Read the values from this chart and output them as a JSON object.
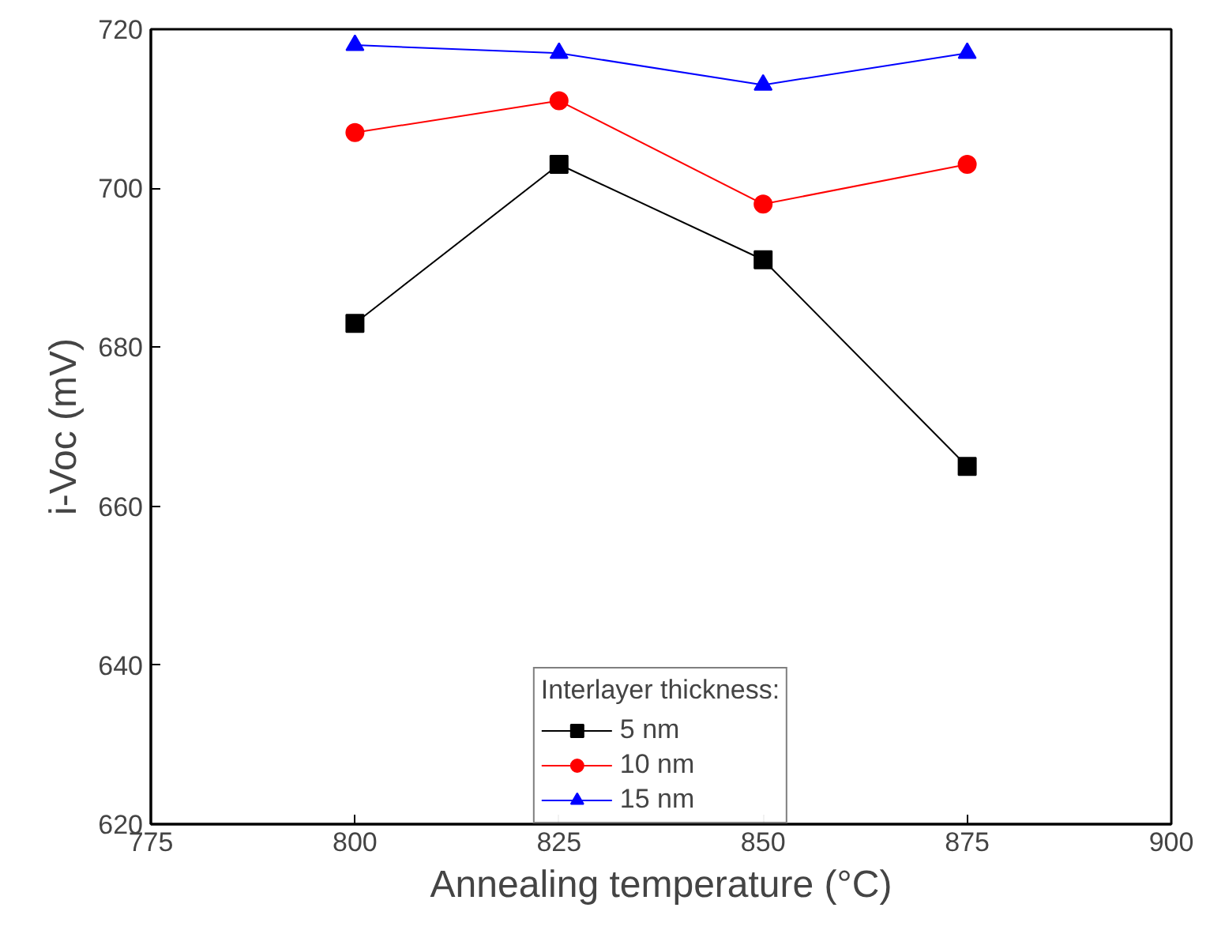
{
  "chart_data": {
    "type": "line",
    "xlabel": "Annealing temperature (°C)",
    "ylabel": "i-Voc (mV)",
    "x": [
      800,
      825,
      850,
      875
    ],
    "xlim": [
      775,
      900
    ],
    "xticks": [
      775,
      800,
      825,
      850,
      875,
      900
    ],
    "ylim": [
      620,
      720
    ],
    "yticks": [
      620,
      640,
      660,
      680,
      700,
      720
    ],
    "legend": "bottom",
    "legend_title": "Interlayer thickness:",
    "grid": false,
    "line_style": "solid",
    "series": [
      {
        "name": "5 nm",
        "color": "#000000",
        "marker": "square",
        "values": [
          683,
          703,
          691,
          665
        ]
      },
      {
        "name": "10 nm",
        "color": "#ff0000",
        "marker": "circle",
        "values": [
          707,
          711,
          698,
          703
        ]
      },
      {
        "name": "15 nm",
        "color": "#0000ff",
        "marker": "triangle",
        "values": [
          718,
          717,
          713,
          717
        ]
      }
    ]
  }
}
